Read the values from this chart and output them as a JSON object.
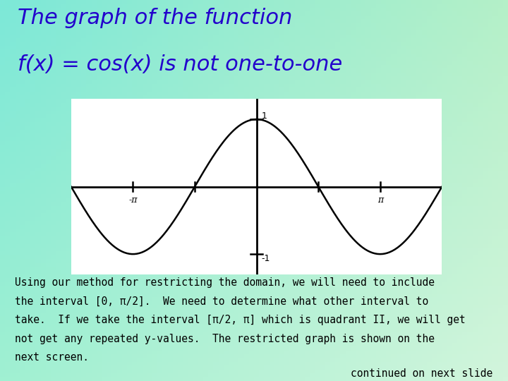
{
  "title_line1": "The graph of the function",
  "title_line2": "f(x) = cos(x) is not one-to-one",
  "title_color": "#2200cc",
  "plot_bg_color": "#ffffff",
  "curve_color": "#000000",
  "axis_color": "#000000",
  "x_min": -4.71238898,
  "x_max": 4.71238898,
  "y_min": -1.3,
  "y_max": 1.3,
  "xlabel_neg_pi": "-π",
  "xlabel_pi": "π",
  "ylabel_1": "1",
  "ylabel_neg1": "-1",
  "body_text_lines": [
    "Using our method for restricting the domain, we will need to include",
    "the interval [0, π/2].  We need to determine what other interval to",
    "take.  If we take the interval [π/2, π] which is quadrant II, we will get",
    "not get any repeated y-values.  The restricted graph is shown on the",
    "next screen."
  ],
  "continued_text": "continued on next slide",
  "font_title_size": 22,
  "font_body_size": 10.5,
  "font_continued_size": 10.5,
  "bg_tl": [
    125,
    232,
    216
  ],
  "bg_tr": [
    180,
    240,
    200
  ],
  "bg_bl": [
    160,
    240,
    210
  ],
  "bg_br": [
    210,
    245,
    220
  ]
}
